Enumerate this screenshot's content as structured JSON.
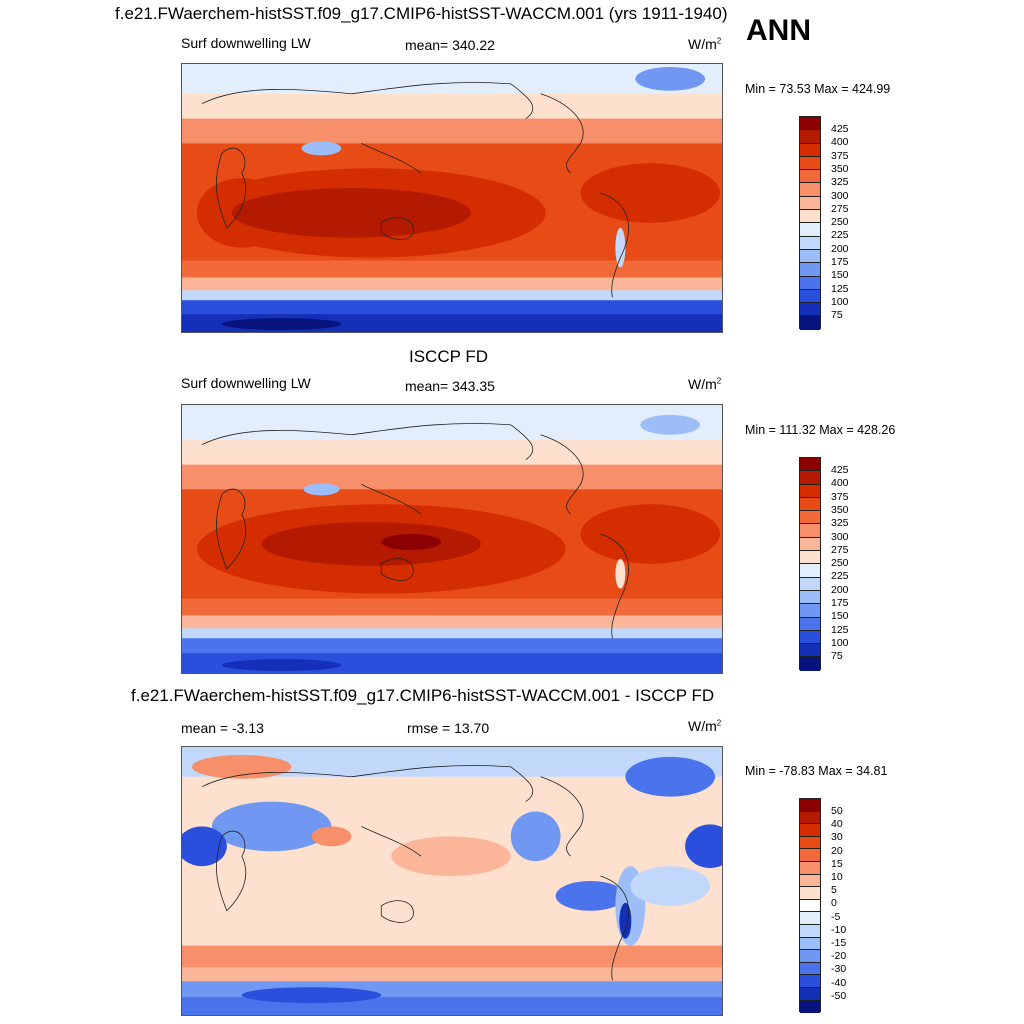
{
  "header": {
    "title": "f.e21.FWaerchem-histSST.f09_g17.CMIP6-histSST-WACCM.001 (yrs 1911-1940)",
    "season": "ANN"
  },
  "panels": [
    {
      "title": "",
      "left_label": "Surf downwelling LW",
      "center_label": "mean= 340.22",
      "units": "W/m",
      "units_sup": "2",
      "minmax": "Min =  73.53 Max = 424.99",
      "colorbar_ticks": [
        "425",
        "400",
        "375",
        "350",
        "325",
        "300",
        "275",
        "250",
        "225",
        "200",
        "175",
        "150",
        "125",
        "100",
        "75"
      ]
    },
    {
      "title": "ISCCP FD",
      "left_label": "Surf downwelling LW",
      "center_label": "mean= 343.35",
      "units": "W/m",
      "units_sup": "2",
      "minmax": "Min = 111.32 Max = 428.26",
      "colorbar_ticks": [
        "425",
        "400",
        "375",
        "350",
        "325",
        "300",
        "275",
        "250",
        "225",
        "200",
        "175",
        "150",
        "125",
        "100",
        "75"
      ]
    },
    {
      "title": "f.e21.FWaerchem-histSST.f09_g17.CMIP6-histSST-WACCM.001 - ISCCP FD",
      "left_label": "mean =  -3.13",
      "center_label": "rmse =  13.70",
      "units": "W/m",
      "units_sup": "2",
      "minmax": "Min = -78.83 Max =  34.81",
      "colorbar_ticks": [
        "50",
        "40",
        "30",
        "20",
        "15",
        "10",
        "5",
        "0",
        "-5",
        "-10",
        "-15",
        "-20",
        "-30",
        "-40",
        "-50"
      ]
    }
  ],
  "colors": {
    "abs_scale": [
      "#8b0000",
      "#b41a00",
      "#d42e00",
      "#e84c16",
      "#f26a3a",
      "#f7906a",
      "#fbb598",
      "#fee0cf",
      "#e3eefd",
      "#c2d8fb",
      "#9cbdf7",
      "#7098f2",
      "#4a73ec",
      "#2a4fdd",
      "#1530b8",
      "#07147e"
    ],
    "diff_scale": [
      "#8b0000",
      "#b41a00",
      "#d42e00",
      "#e84c16",
      "#f26a3a",
      "#f7906a",
      "#fbb598",
      "#fee0cf",
      "#ffffff",
      "#e3eefd",
      "#c2d8fb",
      "#9cbdf7",
      "#7098f2",
      "#4a73ec",
      "#2a4fdd",
      "#1530b8",
      "#07147e"
    ]
  }
}
